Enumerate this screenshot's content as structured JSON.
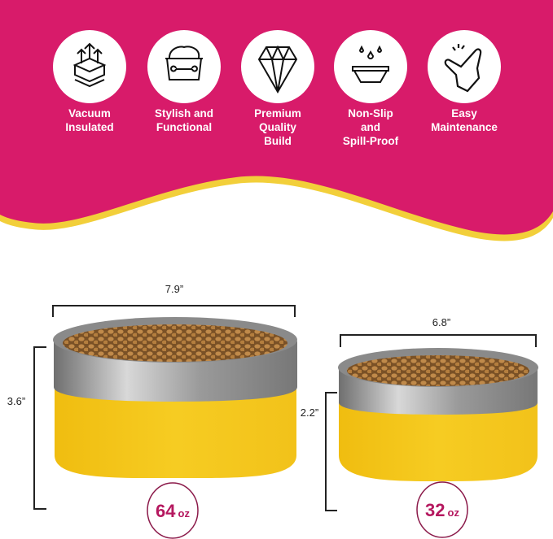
{
  "colors": {
    "banner": "#d81b6a",
    "wave_border": "#f2cf3a",
    "bowl_yellow": "#f4c51c",
    "steel": "#9a9a9a",
    "kibble": "#b07c3c",
    "capacity_accent": "#b5185f"
  },
  "features": [
    {
      "icon": "insulation-layers-icon",
      "lines": [
        "Vacuum",
        "Insulated"
      ]
    },
    {
      "icon": "dog-bowl-bone-icon",
      "lines": [
        "Stylish and",
        "Functional"
      ]
    },
    {
      "icon": "diamond-icon",
      "lines": [
        "Premium",
        "Quality",
        "Build"
      ]
    },
    {
      "icon": "drops-bowl-icon",
      "lines": [
        "Non-Slip",
        "and",
        "Spill-Proof"
      ]
    },
    {
      "icon": "tap-hand-icon",
      "lines": [
        "Easy",
        "Maintenance"
      ]
    }
  ],
  "bowls": [
    {
      "width": "7.9”",
      "height": "3.6”",
      "capacity": "64",
      "unit": "oz"
    },
    {
      "width": "6.8”",
      "height": "2.2”",
      "capacity": "32",
      "unit": "oz"
    }
  ]
}
